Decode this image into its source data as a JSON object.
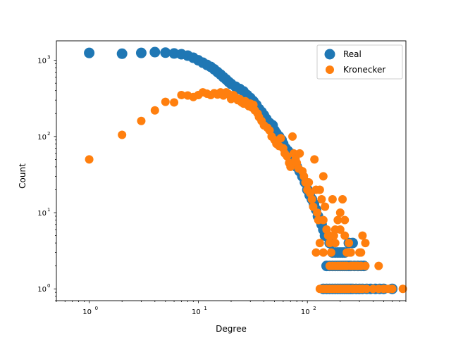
{
  "chart_data": {
    "type": "scatter",
    "title": "",
    "xlabel": "Degree",
    "ylabel": "Count",
    "xscale": "log",
    "yscale": "log",
    "xlim": [
      0.5,
      800
    ],
    "ylim": [
      0.7,
      1800
    ],
    "xticks": [
      {
        "value": 1,
        "label": "10",
        "exp": "0"
      },
      {
        "value": 10,
        "label": "10",
        "exp": "1"
      },
      {
        "value": 100,
        "label": "10",
        "exp": "2"
      }
    ],
    "yticks": [
      {
        "value": 1,
        "label": "10",
        "exp": "0"
      },
      {
        "value": 10,
        "label": "10",
        "exp": "1"
      },
      {
        "value": 100,
        "label": "10",
        "exp": "2"
      },
      {
        "value": 1000,
        "label": "10",
        "exp": "3"
      }
    ],
    "legend": {
      "position": "top-right",
      "entries": [
        "Real",
        "Kronecker"
      ]
    },
    "grid": false,
    "colors": {
      "Real": "#1f77b4",
      "Kronecker": "#ff7f0e"
    },
    "series": [
      {
        "name": "Real",
        "marker_size": "large",
        "points": [
          [
            1,
            1250
          ],
          [
            2,
            1220
          ],
          [
            3,
            1250
          ],
          [
            4,
            1280
          ],
          [
            5,
            1260
          ],
          [
            6,
            1230
          ],
          [
            7,
            1200
          ],
          [
            8,
            1150
          ],
          [
            9,
            1080
          ],
          [
            10,
            1000
          ],
          [
            11,
            930
          ],
          [
            12,
            870
          ],
          [
            13,
            820
          ],
          [
            14,
            760
          ],
          [
            15,
            700
          ],
          [
            16,
            650
          ],
          [
            17,
            600
          ],
          [
            18,
            560
          ],
          [
            19,
            520
          ],
          [
            20,
            490
          ],
          [
            22,
            450
          ],
          [
            24,
            420
          ],
          [
            26,
            390
          ],
          [
            28,
            350
          ],
          [
            30,
            320
          ],
          [
            32,
            290
          ],
          [
            34,
            260
          ],
          [
            36,
            230
          ],
          [
            38,
            210
          ],
          [
            40,
            190
          ],
          [
            42,
            170
          ],
          [
            45,
            150
          ],
          [
            48,
            140
          ],
          [
            50,
            120
          ],
          [
            52,
            110
          ],
          [
            55,
            100
          ],
          [
            58,
            90
          ],
          [
            60,
            80
          ],
          [
            63,
            70
          ],
          [
            66,
            65
          ],
          [
            70,
            60
          ],
          [
            73,
            55
          ],
          [
            76,
            50
          ],
          [
            80,
            40
          ],
          [
            85,
            35
          ],
          [
            90,
            30
          ],
          [
            95,
            25
          ],
          [
            100,
            20
          ],
          [
            105,
            17
          ],
          [
            110,
            15
          ],
          [
            115,
            13
          ],
          [
            120,
            11
          ],
          [
            125,
            9
          ],
          [
            130,
            8
          ],
          [
            135,
            7
          ],
          [
            140,
            6
          ],
          [
            145,
            5
          ],
          [
            150,
            5
          ],
          [
            160,
            4
          ],
          [
            165,
            4
          ],
          [
            170,
            3
          ],
          [
            180,
            3
          ],
          [
            190,
            3
          ],
          [
            200,
            3
          ],
          [
            210,
            3
          ],
          [
            220,
            3
          ],
          [
            240,
            4
          ],
          [
            260,
            4
          ],
          [
            150,
            2
          ],
          [
            160,
            2
          ],
          [
            170,
            2
          ],
          [
            180,
            2
          ],
          [
            190,
            2
          ],
          [
            200,
            2
          ],
          [
            210,
            2
          ],
          [
            220,
            2
          ],
          [
            230,
            2
          ],
          [
            240,
            2
          ],
          [
            250,
            2
          ],
          [
            270,
            2
          ],
          [
            290,
            2
          ],
          [
            310,
            2
          ],
          [
            330,
            2
          ],
          [
            140,
            1
          ],
          [
            150,
            1
          ],
          [
            160,
            1
          ],
          [
            170,
            1
          ],
          [
            180,
            1
          ],
          [
            190,
            1
          ],
          [
            200,
            1
          ],
          [
            210,
            1
          ],
          [
            220,
            1
          ],
          [
            230,
            1
          ],
          [
            240,
            1
          ],
          [
            250,
            1
          ],
          [
            260,
            1
          ],
          [
            280,
            1
          ],
          [
            300,
            1
          ],
          [
            320,
            1
          ],
          [
            350,
            1
          ],
          [
            380,
            1
          ],
          [
            420,
            1
          ],
          [
            460,
            1
          ],
          [
            500,
            1
          ],
          [
            600,
            1
          ]
        ]
      },
      {
        "name": "Kronecker",
        "marker_size": "small",
        "points": [
          [
            1,
            50
          ],
          [
            2,
            105
          ],
          [
            3,
            160
          ],
          [
            4,
            220
          ],
          [
            5,
            285
          ],
          [
            6,
            280
          ],
          [
            7,
            350
          ],
          [
            8,
            345
          ],
          [
            9,
            330
          ],
          [
            10,
            350
          ],
          [
            11,
            380
          ],
          [
            12,
            365
          ],
          [
            13,
            350
          ],
          [
            14,
            370
          ],
          [
            15,
            355
          ],
          [
            16,
            380
          ],
          [
            17,
            345
          ],
          [
            18,
            380
          ],
          [
            19,
            360
          ],
          [
            20,
            310
          ],
          [
            21,
            350
          ],
          [
            22,
            325
          ],
          [
            23,
            300
          ],
          [
            24,
            310
          ],
          [
            25,
            280
          ],
          [
            26,
            270
          ],
          [
            27,
            290
          ],
          [
            28,
            265
          ],
          [
            29,
            250
          ],
          [
            30,
            270
          ],
          [
            31,
            240
          ],
          [
            32,
            260
          ],
          [
            33,
            220
          ],
          [
            35,
            200
          ],
          [
            36,
            180
          ],
          [
            38,
            160
          ],
          [
            40,
            140
          ],
          [
            43,
            130
          ],
          [
            45,
            120
          ],
          [
            47,
            100
          ],
          [
            50,
            90
          ],
          [
            52,
            80
          ],
          [
            55,
            75
          ],
          [
            57,
            95
          ],
          [
            60,
            70
          ],
          [
            62,
            60
          ],
          [
            65,
            55
          ],
          [
            68,
            45
          ],
          [
            70,
            40
          ],
          [
            73,
            100
          ],
          [
            75,
            60
          ],
          [
            78,
            50
          ],
          [
            80,
            45
          ],
          [
            83,
            38
          ],
          [
            85,
            60
          ],
          [
            90,
            35
          ],
          [
            93,
            30
          ],
          [
            96,
            25
          ],
          [
            100,
            20
          ],
          [
            103,
            25
          ],
          [
            106,
            18
          ],
          [
            110,
            15
          ],
          [
            113,
            12
          ],
          [
            116,
            50
          ],
          [
            120,
            20
          ],
          [
            123,
            10
          ],
          [
            126,
            8
          ],
          [
            130,
            20
          ],
          [
            135,
            15
          ],
          [
            140,
            30
          ],
          [
            145,
            12
          ],
          [
            150,
            6
          ],
          [
            155,
            5
          ],
          [
            160,
            4
          ],
          [
            165,
            3
          ],
          [
            170,
            15
          ],
          [
            175,
            5
          ],
          [
            180,
            4
          ],
          [
            190,
            8
          ],
          [
            200,
            6
          ],
          [
            210,
            15
          ],
          [
            220,
            5
          ],
          [
            230,
            3
          ],
          [
            240,
            4
          ],
          [
            250,
            3
          ],
          [
            260,
            2
          ],
          [
            280,
            2
          ],
          [
            300,
            3
          ],
          [
            320,
            5
          ],
          [
            340,
            4
          ],
          [
            120,
            3
          ],
          [
            130,
            4
          ],
          [
            140,
            8
          ],
          [
            150,
            6
          ],
          [
            160,
            2
          ],
          [
            170,
            2
          ],
          [
            180,
            2
          ],
          [
            190,
            2
          ],
          [
            200,
            2
          ],
          [
            210,
            2
          ],
          [
            220,
            2
          ],
          [
            230,
            2
          ],
          [
            250,
            2
          ],
          [
            270,
            2
          ],
          [
            290,
            2
          ],
          [
            310,
            2
          ],
          [
            450,
            2
          ],
          [
            130,
            1
          ],
          [
            140,
            1
          ],
          [
            150,
            1
          ],
          [
            160,
            1
          ],
          [
            170,
            1
          ],
          [
            180,
            1
          ],
          [
            190,
            1
          ],
          [
            200,
            1
          ],
          [
            210,
            1
          ],
          [
            220,
            1
          ],
          [
            230,
            1
          ],
          [
            240,
            1
          ],
          [
            260,
            1
          ],
          [
            280,
            1
          ],
          [
            300,
            1
          ],
          [
            320,
            1
          ],
          [
            350,
            1
          ],
          [
            400,
            1
          ],
          [
            450,
            1
          ],
          [
            500,
            1
          ],
          [
            550,
            1
          ],
          [
            600,
            1
          ],
          [
            750,
            1
          ],
          [
            140,
            3
          ],
          [
            160,
            5
          ],
          [
            180,
            6
          ],
          [
            200,
            10
          ],
          [
            220,
            8
          ],
          [
            240,
            3
          ],
          [
            310,
            3
          ],
          [
            340,
            2
          ]
        ]
      }
    ]
  }
}
